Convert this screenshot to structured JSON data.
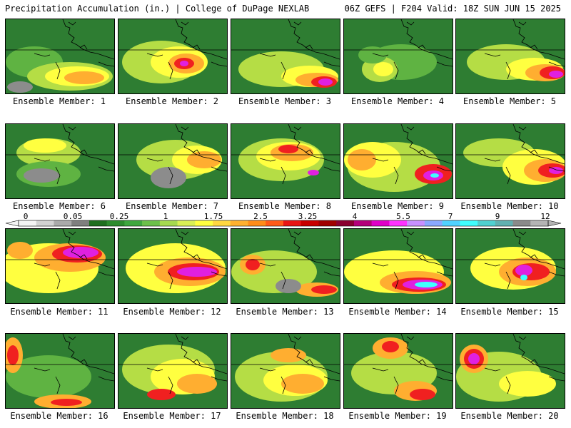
{
  "header": {
    "left": "Precipitation Accumulation (in.) | College of DuPage NEXLAB",
    "right": "06Z GEFS | F204 Valid: 18Z SUN JUN 15 2025"
  },
  "members": [
    "Ensemble Member: 1",
    "Ensemble Member: 2",
    "Ensemble Member: 3",
    "Ensemble Member: 4",
    "Ensemble Member: 5",
    "Ensemble Member: 6",
    "Ensemble Member: 7",
    "Ensemble Member: 8",
    "Ensemble Member: 9",
    "Ensemble Member: 10",
    "Ensemble Member: 11",
    "Ensemble Member: 12",
    "Ensemble Member: 13",
    "Ensemble Member: 14",
    "Ensemble Member: 15",
    "Ensemble Member: 16",
    "Ensemble Member: 17",
    "Ensemble Member: 18",
    "Ensemble Member: 19",
    "Ensemble Member: 20"
  ],
  "colorbar": {
    "labels": [
      "0",
      "0.05",
      "0.25",
      "1",
      "1.75",
      "2.5",
      "3.25",
      "4",
      "5.5",
      "7",
      "9",
      "12"
    ],
    "colors": [
      "#f4f4f4",
      "#d2d2d2",
      "#aaaaaa",
      "#7f7f7f",
      "#1f6e1f",
      "#2e8b2e",
      "#3fa73f",
      "#6cc04a",
      "#a6d94f",
      "#d9ef55",
      "#ffff40",
      "#ffd740",
      "#ffb030",
      "#ff8c1a",
      "#ff5a1a",
      "#e81414",
      "#c80000",
      "#a00000",
      "#8a0030",
      "#b4007a",
      "#e000c8",
      "#ff33ff",
      "#c890ff",
      "#8aa8ff",
      "#50d2ff",
      "#40ffff",
      "#50d0d0",
      "#60b0b0",
      "#8a8a8a",
      "#b4b4b4"
    ]
  },
  "map_colors": {
    "base": "#2e7d32",
    "light_green": "#5fb342",
    "yellow_green": "#b5dd45",
    "yellow": "#ffff40",
    "orange": "#ffae30",
    "red": "#f02020",
    "magenta": "#e020e0",
    "cyan": "#40ffff",
    "grey": "#8c8c8c"
  }
}
